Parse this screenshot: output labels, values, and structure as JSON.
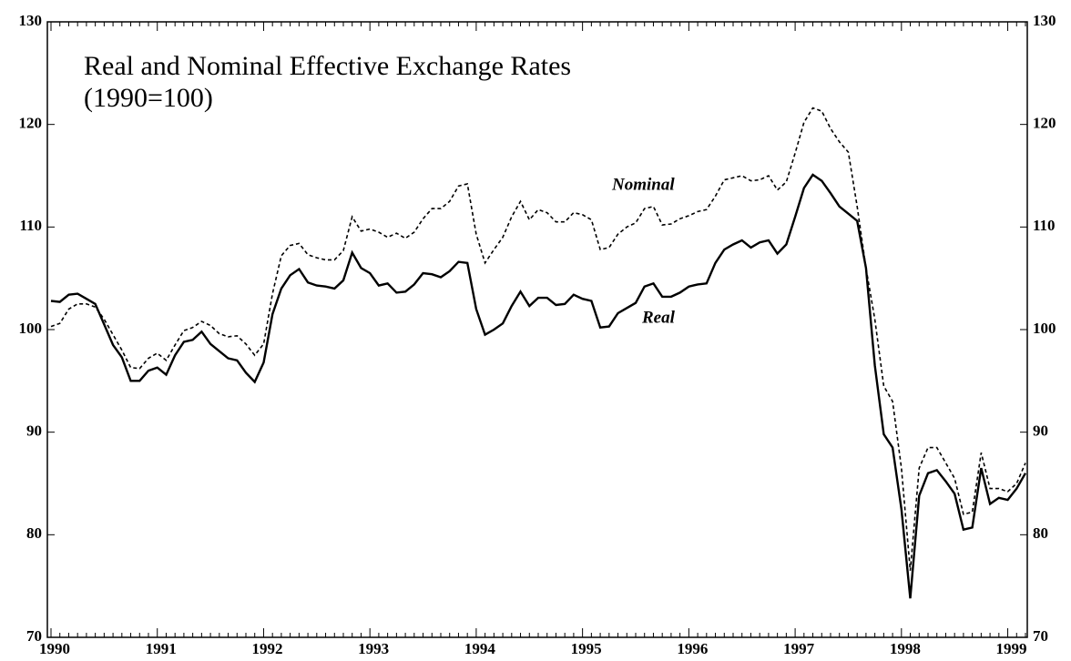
{
  "chart_data": {
    "type": "line",
    "title": "Real and Nominal Effective Exchange Rates",
    "subtitle": "(1990=100)",
    "categories": [
      "1990",
      null,
      null,
      null,
      null,
      null,
      null,
      null,
      null,
      null,
      null,
      null,
      "1991",
      null,
      null,
      null,
      null,
      null,
      null,
      null,
      null,
      null,
      null,
      null,
      "1992",
      null,
      null,
      null,
      null,
      null,
      null,
      null,
      null,
      null,
      null,
      null,
      "1993",
      null,
      null,
      null,
      null,
      null,
      null,
      null,
      null,
      null,
      null,
      null,
      "1994",
      null,
      null,
      null,
      null,
      null,
      null,
      null,
      null,
      null,
      null,
      null,
      "1995",
      null,
      null,
      null,
      null,
      null,
      null,
      null,
      null,
      null,
      null,
      null,
      "1996",
      null,
      null,
      null,
      null,
      null,
      null,
      null,
      null,
      null,
      null,
      null,
      "1997",
      null,
      null,
      null,
      null,
      null,
      null,
      null,
      null,
      null,
      null,
      null,
      "1998",
      null,
      null,
      null,
      null,
      null,
      null,
      null,
      null,
      null,
      null,
      null,
      "1999",
      null,
      null
    ],
    "series": [
      {
        "name": "Nominal",
        "color": "#000000",
        "dash": true,
        "values": [
          100.3,
          100.6,
          102.0,
          102.5,
          102.5,
          102.2,
          101.0,
          99.5,
          98.0,
          96.3,
          96.2,
          97.2,
          97.7,
          97.0,
          98.5,
          99.9,
          100.2,
          100.8,
          100.4,
          99.6,
          99.3,
          99.4,
          98.6,
          97.5,
          98.6,
          103.5,
          107.2,
          108.2,
          108.4,
          107.3,
          107.0,
          106.8,
          106.8,
          107.7,
          111.0,
          109.6,
          109.8,
          109.5,
          109.0,
          109.4,
          108.9,
          109.5,
          110.8,
          111.8,
          111.8,
          112.5,
          114.0,
          114.2,
          109.3,
          106.5,
          107.8,
          109.0,
          111.0,
          112.5,
          110.7,
          111.7,
          111.4,
          110.5,
          110.5,
          111.4,
          111.2,
          110.7,
          107.8,
          108.0,
          109.3,
          110.0,
          110.4,
          111.8,
          112.0,
          110.2,
          110.3,
          110.8,
          111.1,
          111.5,
          111.7,
          113.0,
          114.6,
          114.8,
          115.0,
          114.5,
          114.6,
          115.0,
          113.6,
          114.4,
          117.2,
          120.2,
          121.6,
          121.3,
          119.6,
          118.3,
          117.3,
          112.0,
          106.0,
          101.0,
          94.5,
          93.0,
          86.5,
          76.5,
          86.5,
          88.5,
          88.5,
          87.0,
          85.5,
          82.0,
          82.2,
          88.0,
          84.5,
          84.5,
          84.2,
          85.0,
          87.0
        ]
      },
      {
        "name": "Real",
        "color": "#000000",
        "dash": false,
        "values": [
          102.8,
          102.7,
          103.4,
          103.5,
          103.0,
          102.5,
          100.5,
          98.5,
          97.3,
          95.0,
          95.0,
          96.0,
          96.3,
          95.6,
          97.5,
          98.8,
          99.0,
          99.8,
          98.6,
          97.9,
          97.2,
          97.0,
          95.8,
          94.9,
          96.8,
          101.5,
          104.0,
          105.3,
          105.9,
          104.6,
          104.3,
          104.2,
          104.0,
          104.8,
          107.5,
          106.0,
          105.5,
          104.3,
          104.5,
          103.6,
          103.7,
          104.4,
          105.5,
          105.4,
          105.1,
          105.7,
          106.6,
          106.5,
          102.0,
          99.5,
          100.0,
          100.6,
          102.3,
          103.7,
          102.3,
          103.1,
          103.1,
          102.4,
          102.5,
          103.4,
          103.0,
          102.8,
          100.2,
          100.3,
          101.6,
          102.1,
          102.6,
          104.2,
          104.5,
          103.2,
          103.2,
          103.6,
          104.2,
          104.4,
          104.5,
          106.5,
          107.8,
          108.3,
          108.7,
          108.0,
          108.5,
          108.7,
          107.4,
          108.3,
          111.0,
          113.8,
          115.1,
          114.5,
          113.3,
          112.0,
          111.3,
          110.6,
          106.0,
          96.5,
          89.8,
          88.5,
          82.5,
          73.8,
          83.8,
          86.0,
          86.3,
          85.2,
          84.0,
          80.5,
          80.7,
          86.5,
          83.0,
          83.6,
          83.4,
          84.5,
          86.0
        ]
      }
    ],
    "ylim": [
      70,
      130
    ],
    "yticks": [
      70,
      80,
      90,
      100,
      110,
      120,
      130
    ]
  }
}
